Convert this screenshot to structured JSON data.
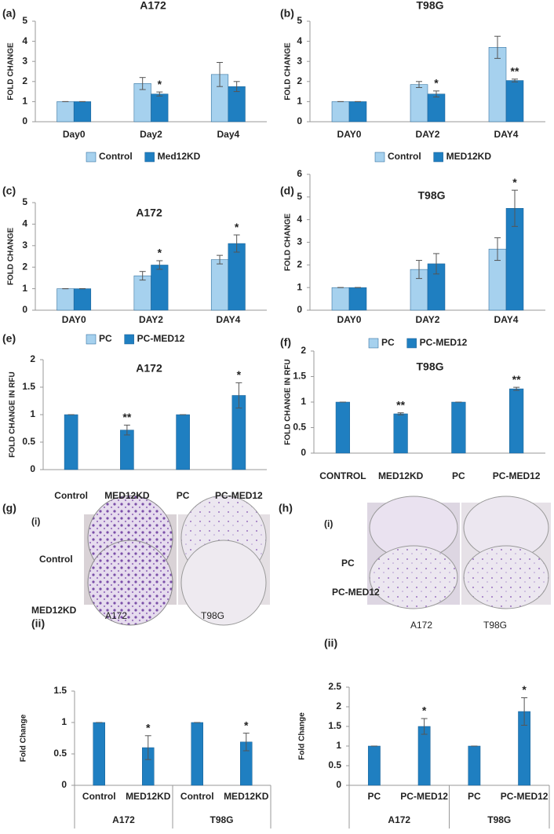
{
  "chart_data": [
    {
      "type": "bar",
      "panel": "(a)",
      "title": "A172",
      "y_label": "FOLD CHANGE",
      "categories": [
        "Day0",
        "Day2",
        "Day4"
      ],
      "series": [
        {
          "name": "Control",
          "color": "#a6d1ee",
          "values": [
            1,
            1.9,
            2.35
          ],
          "errors": [
            0,
            0.3,
            0.6
          ]
        },
        {
          "name": "Med12KD",
          "color": "#1f7fc1",
          "values": [
            1,
            1.38,
            1.75
          ],
          "errors": [
            0,
            0.1,
            0.25
          ],
          "significance": [
            null,
            "*",
            null
          ]
        }
      ],
      "ylim": [
        0,
        5
      ],
      "yticks": [
        0,
        1,
        2,
        3,
        4,
        5
      ],
      "legend": "bottom"
    },
    {
      "type": "bar",
      "panel": "(b)",
      "title": "T98G",
      "y_label": "FOLD CHANGE",
      "categories": [
        "DAY0",
        "DAY2",
        "DAY4"
      ],
      "series": [
        {
          "name": "Control",
          "color": "#a6d1ee",
          "values": [
            1,
            1.85,
            3.7
          ],
          "errors": [
            0,
            0.15,
            0.55
          ]
        },
        {
          "name": "MED12KD",
          "color": "#1f7fc1",
          "values": [
            1,
            1.38,
            2.05
          ],
          "errors": [
            0,
            0.15,
            0.07
          ],
          "significance": [
            null,
            "*",
            "**"
          ]
        }
      ],
      "ylim": [
        0,
        5
      ],
      "yticks": [
        0,
        1,
        2,
        3,
        4,
        5
      ],
      "legend": "bottom"
    },
    {
      "type": "bar",
      "panel": "(c)",
      "title": "A172",
      "y_label": "FOLD CHANGE",
      "categories": [
        "DAY0",
        "DAY2",
        "DAY4"
      ],
      "series": [
        {
          "name": "PC",
          "color": "#a6d1ee",
          "values": [
            1,
            1.6,
            2.35
          ],
          "errors": [
            0,
            0.2,
            0.2
          ]
        },
        {
          "name": "PC-MED12",
          "color": "#1f7fc1",
          "values": [
            1,
            2.1,
            3.1
          ],
          "errors": [
            0,
            0.2,
            0.4
          ],
          "significance": [
            null,
            "*",
            "*"
          ]
        }
      ],
      "ylim": [
        0,
        5
      ],
      "yticks": [
        0,
        1,
        2,
        3,
        4,
        5
      ],
      "legend": "bottom"
    },
    {
      "type": "bar",
      "panel": "(d)",
      "title": "T98G",
      "y_label": "FOLD CHANGE",
      "categories": [
        "DAY0",
        "DAY2",
        "DAY4"
      ],
      "series": [
        {
          "name": "PC",
          "color": "#a6d1ee",
          "values": [
            1,
            1.8,
            2.7
          ],
          "errors": [
            0,
            0.4,
            0.5
          ]
        },
        {
          "name": "PC-MED12",
          "color": "#1f7fc1",
          "values": [
            1,
            2.05,
            4.5
          ],
          "errors": [
            0,
            0.45,
            0.8
          ],
          "significance": [
            null,
            null,
            "*"
          ]
        }
      ],
      "ylim": [
        0,
        6
      ],
      "yticks": [
        0,
        1,
        2,
        3,
        4,
        5,
        6
      ],
      "legend": "bottom"
    },
    {
      "type": "bar",
      "panel": "(e)",
      "title": "A172",
      "y_label": "FOLD CHANGE IN RFU",
      "categories": [
        "Control",
        "MED12KD",
        "PC",
        "PC-MED12"
      ],
      "series": [
        {
          "color": "#1f7fc1",
          "values": [
            1,
            0.72,
            1,
            1.35
          ],
          "errors": [
            0,
            0.09,
            0,
            0.23
          ],
          "significance": [
            null,
            "**",
            null,
            "*"
          ]
        }
      ],
      "ylim": [
        0,
        2
      ],
      "yticks": [
        0,
        0.5,
        1,
        1.5,
        2
      ]
    },
    {
      "type": "bar",
      "panel": "(f)",
      "title": "T98G",
      "y_label": "FOLD CHANGE IN RFU",
      "categories": [
        "CONTROL",
        "MED12KD",
        "PC",
        "PC-MED12"
      ],
      "series": [
        {
          "color": "#1f7fc1",
          "values": [
            1,
            0.77,
            1,
            1.26
          ],
          "errors": [
            0,
            0.02,
            0,
            0.03
          ],
          "significance": [
            null,
            "**",
            null,
            "**"
          ]
        }
      ],
      "ylim": [
        0,
        2
      ],
      "yticks": [
        0,
        0.5,
        1,
        1.5,
        2
      ]
    },
    {
      "type": "bar",
      "panel": "(ii)",
      "y_label": "Fold Change",
      "categories": [
        "Control",
        "MED12KD",
        "Control",
        "MED12KD"
      ],
      "groups": [
        "A172",
        "T98G"
      ],
      "series": [
        {
          "color": "#1f7fc1",
          "values": [
            1,
            0.6,
            1,
            0.69
          ],
          "errors": [
            0,
            0.19,
            0,
            0.14
          ],
          "significance": [
            null,
            "*",
            null,
            "*"
          ]
        }
      ],
      "ylim": [
        0,
        1.5
      ],
      "yticks": [
        0,
        0.5,
        1,
        1.5
      ]
    },
    {
      "type": "bar",
      "panel": "(ii)",
      "y_label": "Fold Change",
      "categories": [
        "PC",
        "PC-MED12",
        "PC",
        "PC-MED12"
      ],
      "groups": [
        "A172",
        "T98G"
      ],
      "series": [
        {
          "color": "#1f7fc1",
          "values": [
            1,
            1.5,
            1,
            1.88
          ],
          "errors": [
            0,
            0.2,
            0,
            0.35
          ],
          "significance": [
            null,
            "*",
            null,
            "*"
          ]
        }
      ],
      "ylim": [
        0,
        2.5
      ],
      "yticks": [
        0,
        0.5,
        1,
        1.5,
        2,
        2.5
      ]
    }
  ],
  "photo_panels": [
    {
      "panel": "(g)",
      "sub": "(i)",
      "row_labels": [
        "Control",
        "MED12KD"
      ],
      "col_labels": [
        "A172",
        "T98G"
      ]
    },
    {
      "panel": "(h)",
      "sub": "(i)",
      "row_labels": [
        "PC",
        "PC-MED12"
      ],
      "col_labels": [
        "A172",
        "T98G"
      ]
    }
  ]
}
